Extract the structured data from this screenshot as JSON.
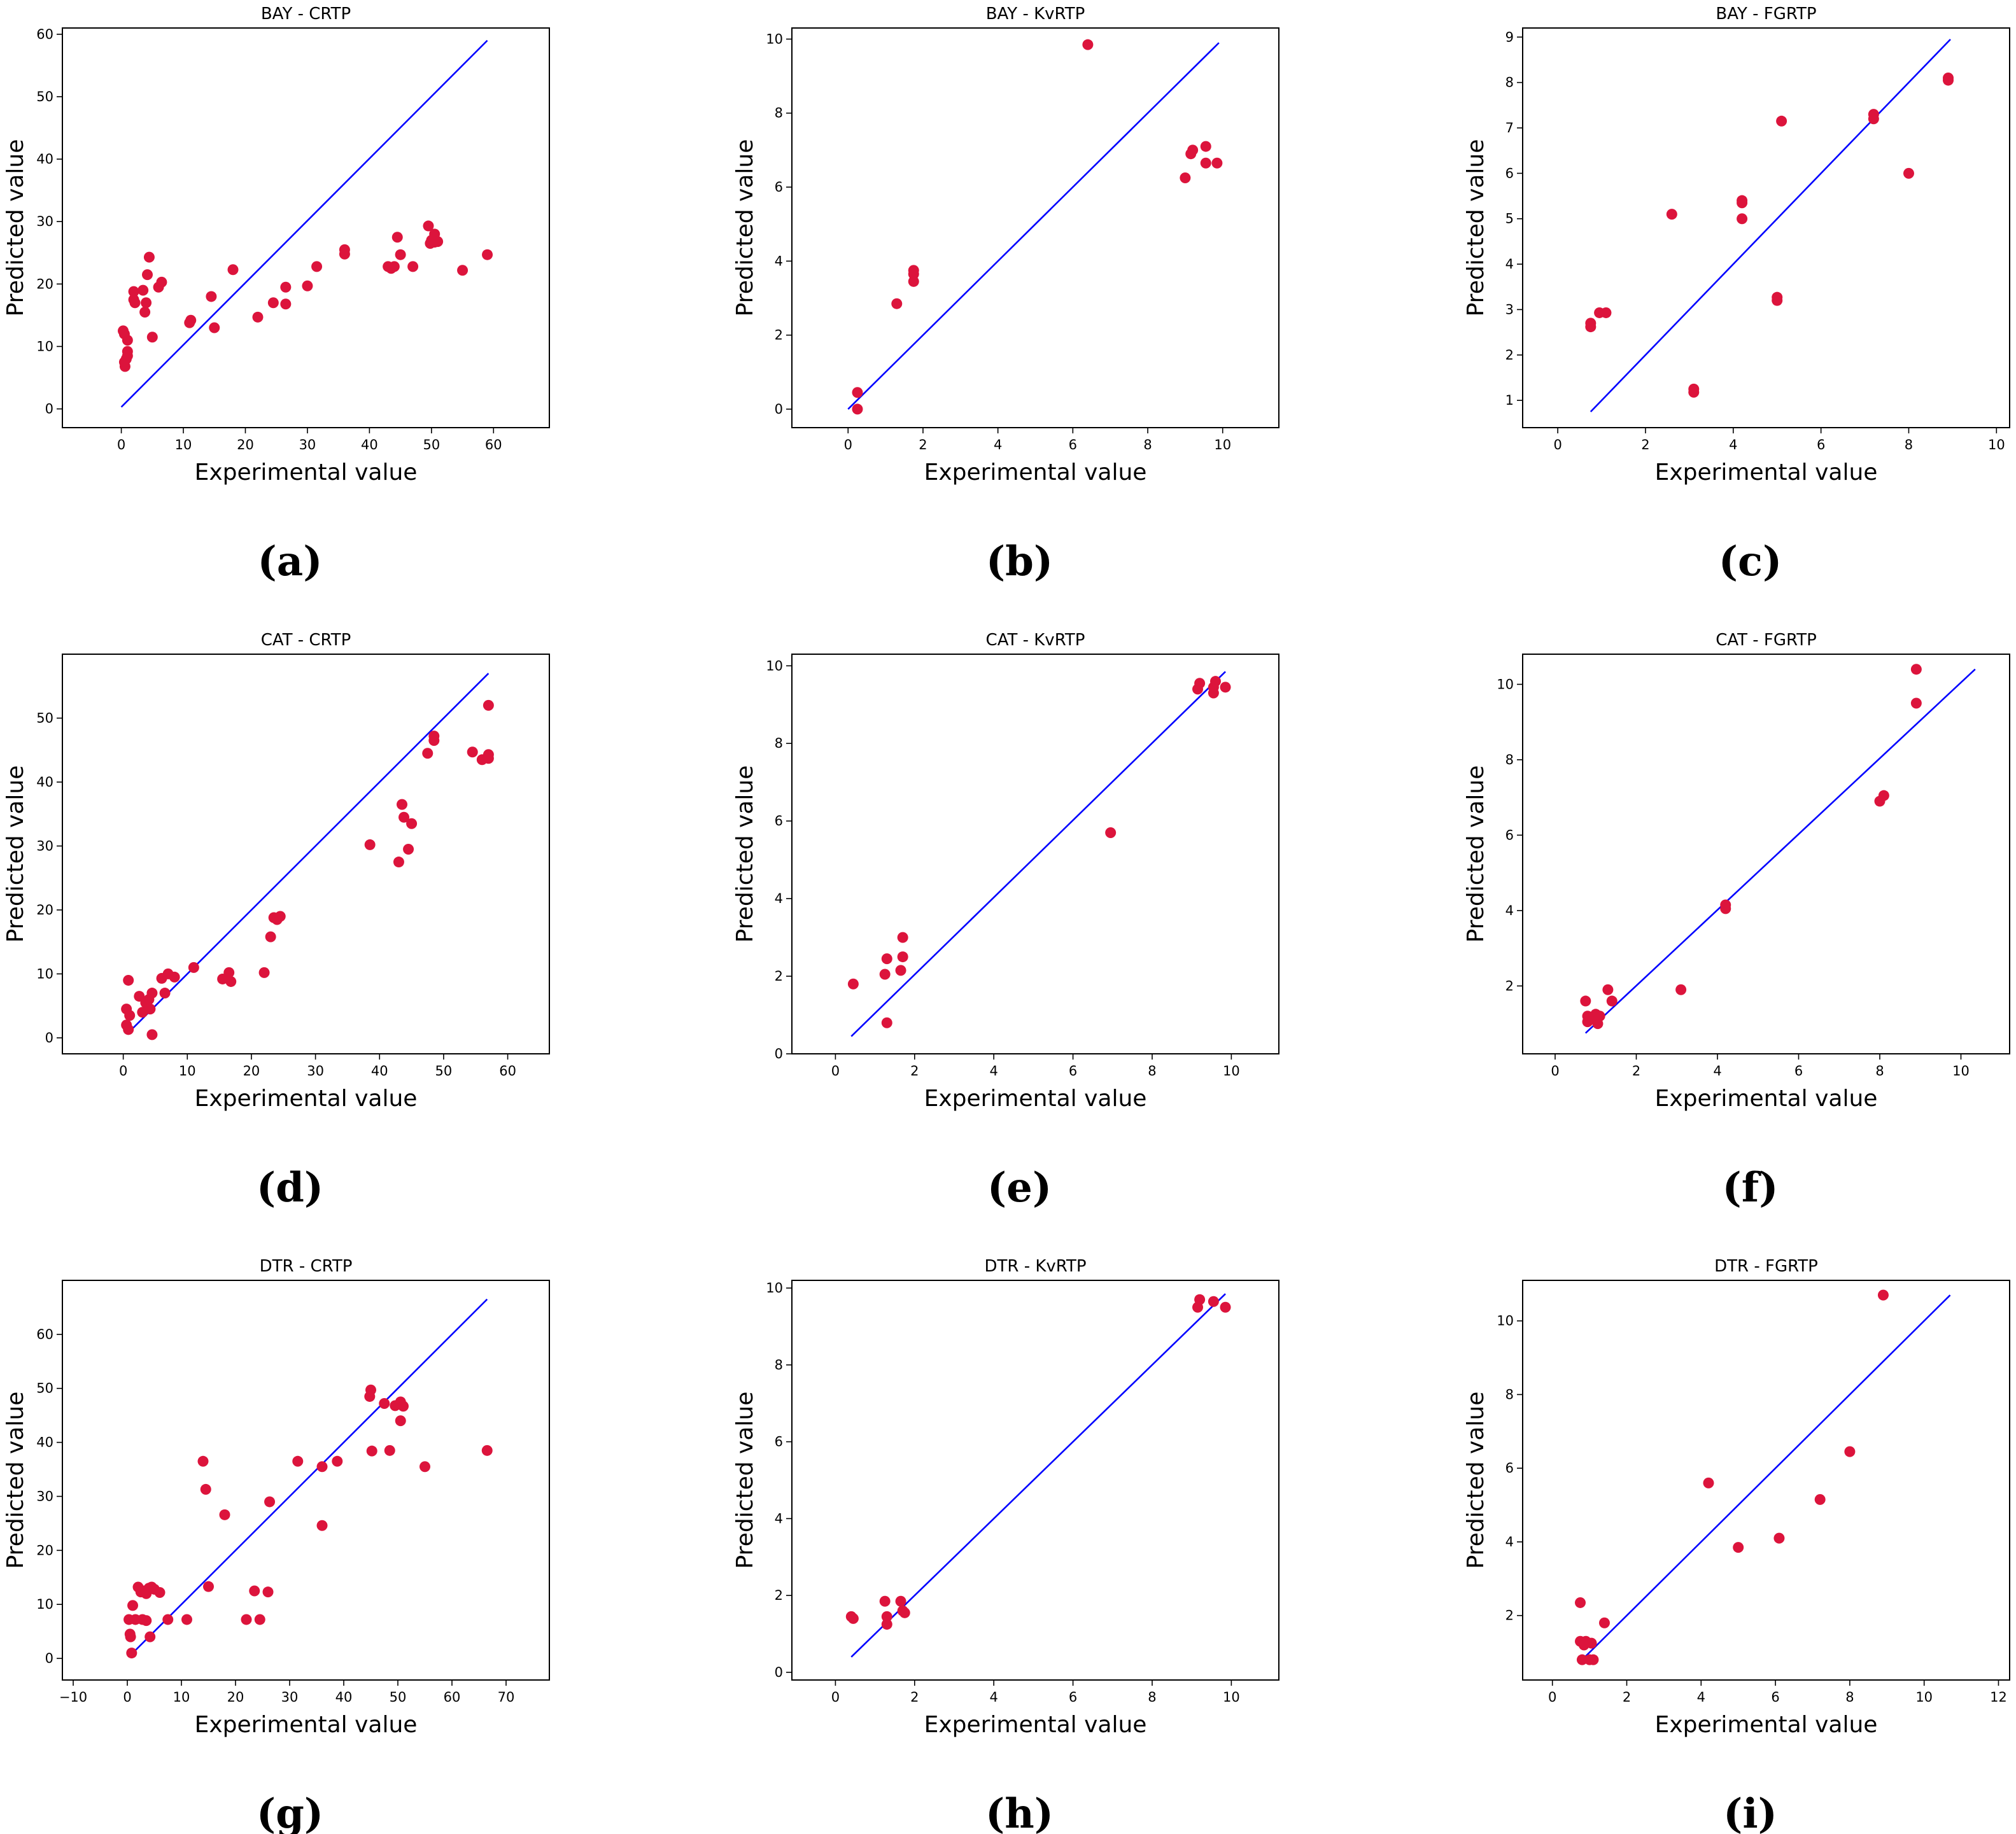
{
  "figure": {
    "colors": {
      "points": "#dc143c",
      "identity_line": "#0000ff",
      "frame": "#000000"
    }
  },
  "chart_data": [
    {
      "type": "scatter",
      "title": "BAY - CRTP",
      "caption": "(a)",
      "xlabel": "Experimental value",
      "ylabel": "Predicted value",
      "xlim": [
        -9.5,
        69
      ],
      "ylim": [
        -3,
        61
      ],
      "xticks": [
        0,
        10,
        20,
        30,
        40,
        50,
        60
      ],
      "yticks": [
        0,
        10,
        20,
        30,
        40,
        50,
        60
      ],
      "xtick_labels": [
        "0",
        "10",
        "20",
        "30",
        "40",
        "50",
        "60"
      ],
      "ytick_labels": [
        "0",
        "10",
        "20",
        "30",
        "40",
        "50",
        "60"
      ],
      "line": [
        [
          0,
          0.3
        ],
        [
          59,
          59
        ]
      ],
      "points": [
        [
          0.3,
          12.5
        ],
        [
          0.5,
          12
        ],
        [
          0.5,
          7.5
        ],
        [
          0.6,
          6.8
        ],
        [
          0.8,
          8
        ],
        [
          1,
          11
        ],
        [
          1,
          9.2
        ],
        [
          1,
          8.5
        ],
        [
          2,
          18.8
        ],
        [
          2,
          17.5
        ],
        [
          2.2,
          17
        ],
        [
          3.5,
          19
        ],
        [
          3.8,
          15.5
        ],
        [
          4,
          17
        ],
        [
          4.2,
          21.5
        ],
        [
          4.5,
          24.3
        ],
        [
          5,
          11.5
        ],
        [
          6,
          19.5
        ],
        [
          6.5,
          20.3
        ],
        [
          11,
          13.8
        ],
        [
          11.2,
          14.2
        ],
        [
          14.5,
          18
        ],
        [
          15,
          13
        ],
        [
          18,
          22.3
        ],
        [
          22,
          14.7
        ],
        [
          24.5,
          17
        ],
        [
          26.5,
          16.8
        ],
        [
          26.5,
          19.5
        ],
        [
          30,
          19.7
        ],
        [
          31.5,
          22.8
        ],
        [
          36,
          24.8
        ],
        [
          36,
          25.5
        ],
        [
          43,
          22.8
        ],
        [
          43.5,
          22.5
        ],
        [
          44,
          22.8
        ],
        [
          44.5,
          27.5
        ],
        [
          45,
          24.7
        ],
        [
          47,
          22.8
        ],
        [
          49.5,
          29.3
        ],
        [
          49.8,
          26.5
        ],
        [
          50,
          27
        ],
        [
          50.5,
          26.7
        ],
        [
          50.5,
          28
        ],
        [
          51,
          26.8
        ],
        [
          55,
          22.2
        ],
        [
          59,
          24.7
        ]
      ]
    },
    {
      "type": "scatter",
      "title": "BAY - KvRTP",
      "caption": "(b)",
      "xlabel": "Experimental value",
      "ylabel": "Predicted value",
      "xlim": [
        -1.5,
        11.5
      ],
      "ylim": [
        -0.5,
        10.3
      ],
      "xticks": [
        0,
        2,
        4,
        6,
        8,
        10
      ],
      "yticks": [
        0,
        2,
        4,
        6,
        8,
        10
      ],
      "xtick_labels": [
        "0",
        "2",
        "4",
        "6",
        "8",
        "10"
      ],
      "ytick_labels": [
        "0",
        "2",
        "4",
        "6",
        "8",
        "10"
      ],
      "line": [
        [
          0,
          0
        ],
        [
          9.9,
          9.9
        ]
      ],
      "points": [
        [
          0.25,
          0.45
        ],
        [
          0.25,
          0
        ],
        [
          1.3,
          2.85
        ],
        [
          1.75,
          3.45
        ],
        [
          1.75,
          3.65
        ],
        [
          1.75,
          3.75
        ],
        [
          6.4,
          9.85
        ],
        [
          9,
          6.25
        ],
        [
          9.15,
          6.9
        ],
        [
          9.2,
          7
        ],
        [
          9.55,
          7.1
        ],
        [
          9.55,
          6.65
        ],
        [
          9.85,
          6.65
        ]
      ]
    },
    {
      "type": "scatter",
      "title": "BAY - FGRTP",
      "caption": "(c)",
      "xlabel": "Experimental value",
      "ylabel": "Predicted value",
      "xlim": [
        -0.8,
        10.3
      ],
      "ylim": [
        0.4,
        9.2
      ],
      "xticks": [
        0,
        2,
        4,
        6,
        8,
        10
      ],
      "yticks": [
        1,
        2,
        3,
        4,
        5,
        6,
        7,
        8,
        9
      ],
      "xtick_labels": [
        "0",
        "2",
        "4",
        "6",
        "8",
        "10"
      ],
      "ytick_labels": [
        "1",
        "2",
        "3",
        "4",
        "5",
        "6",
        "7",
        "8",
        "9"
      ],
      "line": [
        [
          0.75,
          0.75
        ],
        [
          8.95,
          8.95
        ]
      ],
      "points": [
        [
          0.75,
          2.62
        ],
        [
          0.75,
          2.7
        ],
        [
          0.95,
          2.93
        ],
        [
          1.1,
          2.93
        ],
        [
          2.6,
          5.1
        ],
        [
          3.1,
          1.18
        ],
        [
          3.1,
          1.25
        ],
        [
          4.2,
          5.4
        ],
        [
          4.2,
          5.35
        ],
        [
          4.2,
          5
        ],
        [
          5,
          3.2
        ],
        [
          5,
          3.27
        ],
        [
          5.1,
          7.15
        ],
        [
          7.2,
          7.2
        ],
        [
          7.2,
          7.3
        ],
        [
          8,
          6
        ],
        [
          8.9,
          8.05
        ],
        [
          8.9,
          8.1
        ]
      ]
    },
    {
      "type": "scatter",
      "title": "CAT - CRTP",
      "caption": "(d)",
      "xlabel": "Experimental value",
      "ylabel": "Predicted value",
      "xlim": [
        -9.5,
        66.5
      ],
      "ylim": [
        -2.5,
        60
      ],
      "xticks": [
        0,
        10,
        20,
        30,
        40,
        50,
        60
      ],
      "yticks": [
        0,
        10,
        20,
        30,
        40,
        50
      ],
      "xtick_labels": [
        "0",
        "10",
        "20",
        "30",
        "40",
        "50",
        "60"
      ],
      "ytick_labels": [
        "0",
        "10",
        "20",
        "30",
        "40",
        "50"
      ],
      "line": [
        [
          0.8,
          0.8
        ],
        [
          57,
          57
        ]
      ],
      "points": [
        [
          0.5,
          4.5
        ],
        [
          0.5,
          2
        ],
        [
          0.8,
          9
        ],
        [
          0.8,
          1.3
        ],
        [
          1,
          3.5
        ],
        [
          2.5,
          6.5
        ],
        [
          3,
          4
        ],
        [
          3.5,
          5.5
        ],
        [
          4,
          6
        ],
        [
          4.2,
          4.5
        ],
        [
          4.5,
          7
        ],
        [
          4.5,
          0.5
        ],
        [
          6,
          9.3
        ],
        [
          6.5,
          7
        ],
        [
          7,
          10
        ],
        [
          8,
          9.5
        ],
        [
          11,
          11
        ],
        [
          15.5,
          9.2
        ],
        [
          16.5,
          10.2
        ],
        [
          16.8,
          8.8
        ],
        [
          22,
          10.2
        ],
        [
          23,
          15.8
        ],
        [
          23.5,
          18.8
        ],
        [
          24,
          18.5
        ],
        [
          24.5,
          19
        ],
        [
          38.5,
          30.2
        ],
        [
          43,
          27.5
        ],
        [
          43.5,
          36.5
        ],
        [
          43.8,
          34.5
        ],
        [
          44.5,
          29.5
        ],
        [
          45,
          33.5
        ],
        [
          47.5,
          44.5
        ],
        [
          48.5,
          47.2
        ],
        [
          48.5,
          46.5
        ],
        [
          54.5,
          44.7
        ],
        [
          56,
          43.5
        ],
        [
          57,
          52
        ],
        [
          57,
          44.3
        ],
        [
          57,
          43.7
        ]
      ]
    },
    {
      "type": "scatter",
      "title": "CAT - KvRTP",
      "caption": "(e)",
      "xlabel": "Experimental value",
      "ylabel": "Predicted value",
      "xlim": [
        -1.1,
        11.2
      ],
      "ylim": [
        0,
        10.3
      ],
      "xticks": [
        0,
        2,
        4,
        6,
        8,
        10
      ],
      "yticks": [
        0,
        2,
        4,
        6,
        8,
        10
      ],
      "xtick_labels": [
        "0",
        "2",
        "4",
        "6",
        "8",
        "10"
      ],
      "ytick_labels": [
        "0",
        "2",
        "4",
        "6",
        "8",
        "10"
      ],
      "line": [
        [
          0.4,
          0.45
        ],
        [
          9.85,
          9.85
        ]
      ],
      "points": [
        [
          0.45,
          1.8
        ],
        [
          1.25,
          2.05
        ],
        [
          1.3,
          2.45
        ],
        [
          1.3,
          0.8
        ],
        [
          1.65,
          2.15
        ],
        [
          1.7,
          2.5
        ],
        [
          1.7,
          3
        ],
        [
          6.95,
          5.7
        ],
        [
          9.15,
          9.4
        ],
        [
          9.2,
          9.55
        ],
        [
          9.55,
          9.3
        ],
        [
          9.55,
          9.45
        ],
        [
          9.6,
          9.6
        ],
        [
          9.85,
          9.45
        ]
      ]
    },
    {
      "type": "scatter",
      "title": "CAT - FGRTP",
      "caption": "(f)",
      "xlabel": "Experimental value",
      "ylabel": "Predicted value",
      "xlim": [
        -0.8,
        11.2
      ],
      "ylim": [
        0.2,
        10.8
      ],
      "xticks": [
        0,
        2,
        4,
        6,
        8,
        10
      ],
      "yticks": [
        2,
        4,
        6,
        8,
        10
      ],
      "xtick_labels": [
        "0",
        "2",
        "4",
        "6",
        "8",
        "10"
      ],
      "ytick_labels": [
        "2",
        "4",
        "6",
        "8",
        "10"
      ],
      "line": [
        [
          0.75,
          0.75
        ],
        [
          10.35,
          10.4
        ]
      ],
      "points": [
        [
          0.75,
          1.6
        ],
        [
          0.8,
          1.2
        ],
        [
          0.8,
          1.05
        ],
        [
          0.9,
          1.15
        ],
        [
          1,
          1.25
        ],
        [
          1.05,
          1
        ],
        [
          1.1,
          1.2
        ],
        [
          1.3,
          1.9
        ],
        [
          1.4,
          1.6
        ],
        [
          3.1,
          1.9
        ],
        [
          4.2,
          4.05
        ],
        [
          4.2,
          4.15
        ],
        [
          8,
          6.9
        ],
        [
          8.1,
          7.05
        ],
        [
          8.9,
          9.5
        ],
        [
          8.9,
          10.4
        ]
      ]
    },
    {
      "type": "scatter",
      "title": "DTR - CRTP",
      "caption": "(g)",
      "xlabel": "Experimental value",
      "ylabel": "Predicted value",
      "xlim": [
        -12,
        78
      ],
      "ylim": [
        -4,
        70
      ],
      "xticks": [
        -10,
        0,
        10,
        20,
        30,
        40,
        50,
        60,
        70
      ],
      "yticks": [
        0,
        10,
        20,
        30,
        40,
        50,
        60
      ],
      "xtick_labels": [
        "−10",
        "0",
        "10",
        "20",
        "30",
        "40",
        "50",
        "60",
        "70"
      ],
      "ytick_labels": [
        "0",
        "10",
        "20",
        "30",
        "40",
        "50",
        "60"
      ],
      "line": [
        [
          0.8,
          0.8
        ],
        [
          66.5,
          66.5
        ]
      ],
      "points": [
        [
          0.3,
          7.2
        ],
        [
          0.5,
          4.5
        ],
        [
          0.6,
          4
        ],
        [
          0.8,
          1
        ],
        [
          1,
          9.8
        ],
        [
          1.5,
          7.2
        ],
        [
          2,
          13.2
        ],
        [
          2.5,
          12.3
        ],
        [
          2.8,
          7.2
        ],
        [
          3,
          12.5
        ],
        [
          3.5,
          12
        ],
        [
          3.5,
          7
        ],
        [
          4,
          13
        ],
        [
          4.2,
          4
        ],
        [
          4.5,
          13.2
        ],
        [
          5,
          12.8
        ],
        [
          6,
          12.2
        ],
        [
          7.5,
          7.2
        ],
        [
          11,
          7.2
        ],
        [
          14,
          36.5
        ],
        [
          14.5,
          31.3
        ],
        [
          15,
          13.3
        ],
        [
          18,
          26.6
        ],
        [
          22,
          7.2
        ],
        [
          23.5,
          12.5
        ],
        [
          24.5,
          7.2
        ],
        [
          26,
          12.3
        ],
        [
          26.3,
          29
        ],
        [
          31.5,
          36.5
        ],
        [
          36,
          35.5
        ],
        [
          36,
          24.6
        ],
        [
          38.8,
          36.5
        ],
        [
          44.8,
          48.5
        ],
        [
          45,
          49.7
        ],
        [
          45.2,
          38.4
        ],
        [
          47.5,
          47.2
        ],
        [
          48.5,
          38.5
        ],
        [
          49.5,
          46.8
        ],
        [
          50.5,
          47.5
        ],
        [
          50.5,
          44
        ],
        [
          51,
          46.7
        ],
        [
          55,
          35.5
        ],
        [
          66.5,
          38.5
        ]
      ]
    },
    {
      "type": "scatter",
      "title": "DTR - KvRTP",
      "caption": "(h)",
      "xlabel": "Experimental value",
      "ylabel": "Predicted value",
      "xlim": [
        -1.1,
        11.2
      ],
      "ylim": [
        -0.2,
        10.2
      ],
      "xticks": [
        0,
        2,
        4,
        6,
        8,
        10
      ],
      "yticks": [
        0,
        2,
        4,
        6,
        8,
        10
      ],
      "xtick_labels": [
        "0",
        "2",
        "4",
        "6",
        "8",
        "10"
      ],
      "ytick_labels": [
        "0",
        "2",
        "4",
        "6",
        "8",
        "10"
      ],
      "line": [
        [
          0.4,
          0.4
        ],
        [
          9.85,
          9.85
        ]
      ],
      "points": [
        [
          0.4,
          1.45
        ],
        [
          0.45,
          1.4
        ],
        [
          1.25,
          1.85
        ],
        [
          1.3,
          1.45
        ],
        [
          1.3,
          1.25
        ],
        [
          1.65,
          1.85
        ],
        [
          1.7,
          1.6
        ],
        [
          1.75,
          1.55
        ],
        [
          9.15,
          9.5
        ],
        [
          9.2,
          9.7
        ],
        [
          9.55,
          9.65
        ],
        [
          9.85,
          9.5
        ]
      ]
    },
    {
      "type": "scatter",
      "title": "DTR - FGRTP",
      "caption": "(i)",
      "xlabel": "Experimental value",
      "ylabel": "Predicted value",
      "xlim": [
        -0.8,
        12.3
      ],
      "ylim": [
        0.25,
        11.1
      ],
      "xticks": [
        0,
        2,
        4,
        6,
        8,
        10,
        12
      ],
      "yticks": [
        2,
        4,
        6,
        8,
        10
      ],
      "xtick_labels": [
        "0",
        "2",
        "4",
        "6",
        "8",
        "10",
        "12"
      ],
      "ytick_labels": [
        "2",
        "4",
        "6",
        "8",
        "10"
      ],
      "line": [
        [
          0.75,
          0.75
        ],
        [
          10.7,
          10.7
        ]
      ],
      "points": [
        [
          0.75,
          2.35
        ],
        [
          0.75,
          1.3
        ],
        [
          0.8,
          0.8
        ],
        [
          0.85,
          1.2
        ],
        [
          0.9,
          1.3
        ],
        [
          1,
          0.8
        ],
        [
          1.05,
          1.25
        ],
        [
          1.1,
          0.8
        ],
        [
          1.4,
          1.8
        ],
        [
          4.2,
          5.6
        ],
        [
          5,
          3.85
        ],
        [
          6.1,
          4.1
        ],
        [
          7.2,
          5.15
        ],
        [
          8,
          6.45
        ],
        [
          8.9,
          10.7
        ]
      ]
    }
  ]
}
